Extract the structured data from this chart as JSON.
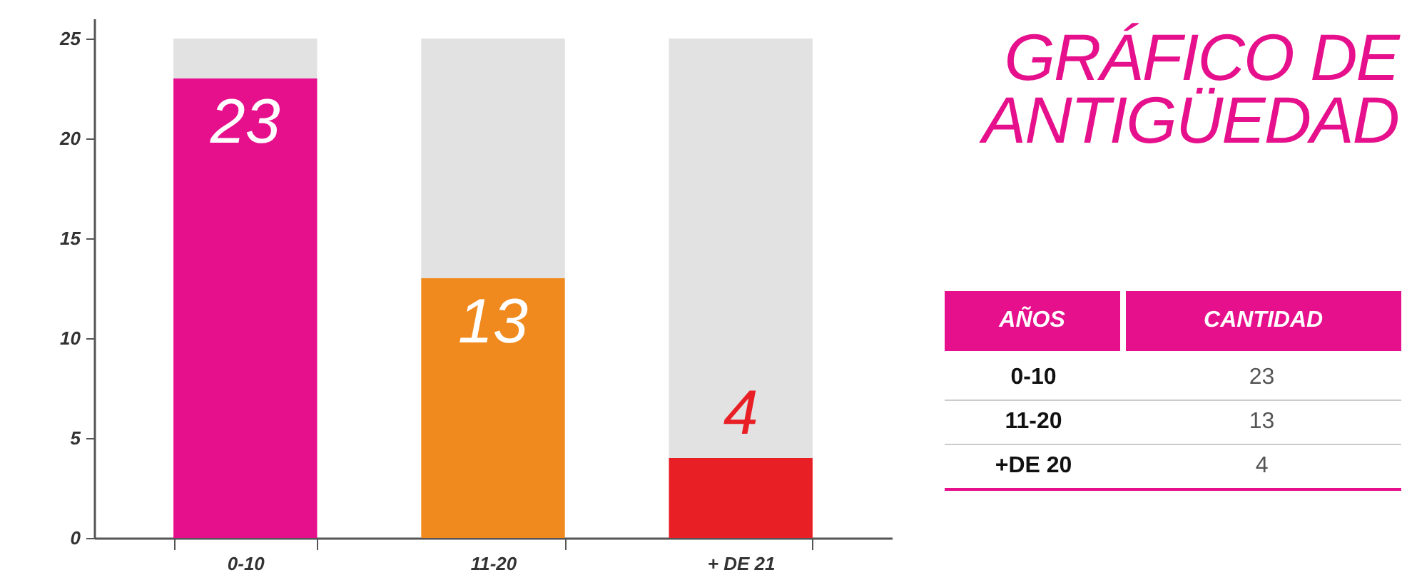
{
  "chart_data": {
    "type": "bar",
    "title": "GRÁFICO DE ANTIGÜEDAD",
    "categories": [
      "0-10",
      "11-20",
      "+ DE 21"
    ],
    "stacked": true,
    "series": [
      {
        "colors": [
          "#e6108c",
          "#f08a1e",
          "#e81f25"
        ],
        "values": [
          23,
          13,
          4
        ],
        "value_labels": [
          "23",
          "13",
          "4"
        ]
      },
      {
        "color": "#e2e2e2",
        "values": [
          2,
          12,
          21
        ]
      }
    ],
    "ylim": [
      0,
      26
    ],
    "yticks": [
      0,
      5,
      10,
      15,
      20,
      25
    ],
    "grid": false,
    "annotations": [
      "AÑOS",
      "CANTIDAD",
      "0-10",
      "23",
      "11-20",
      "13",
      "+DE 20",
      "4"
    ]
  }
}
